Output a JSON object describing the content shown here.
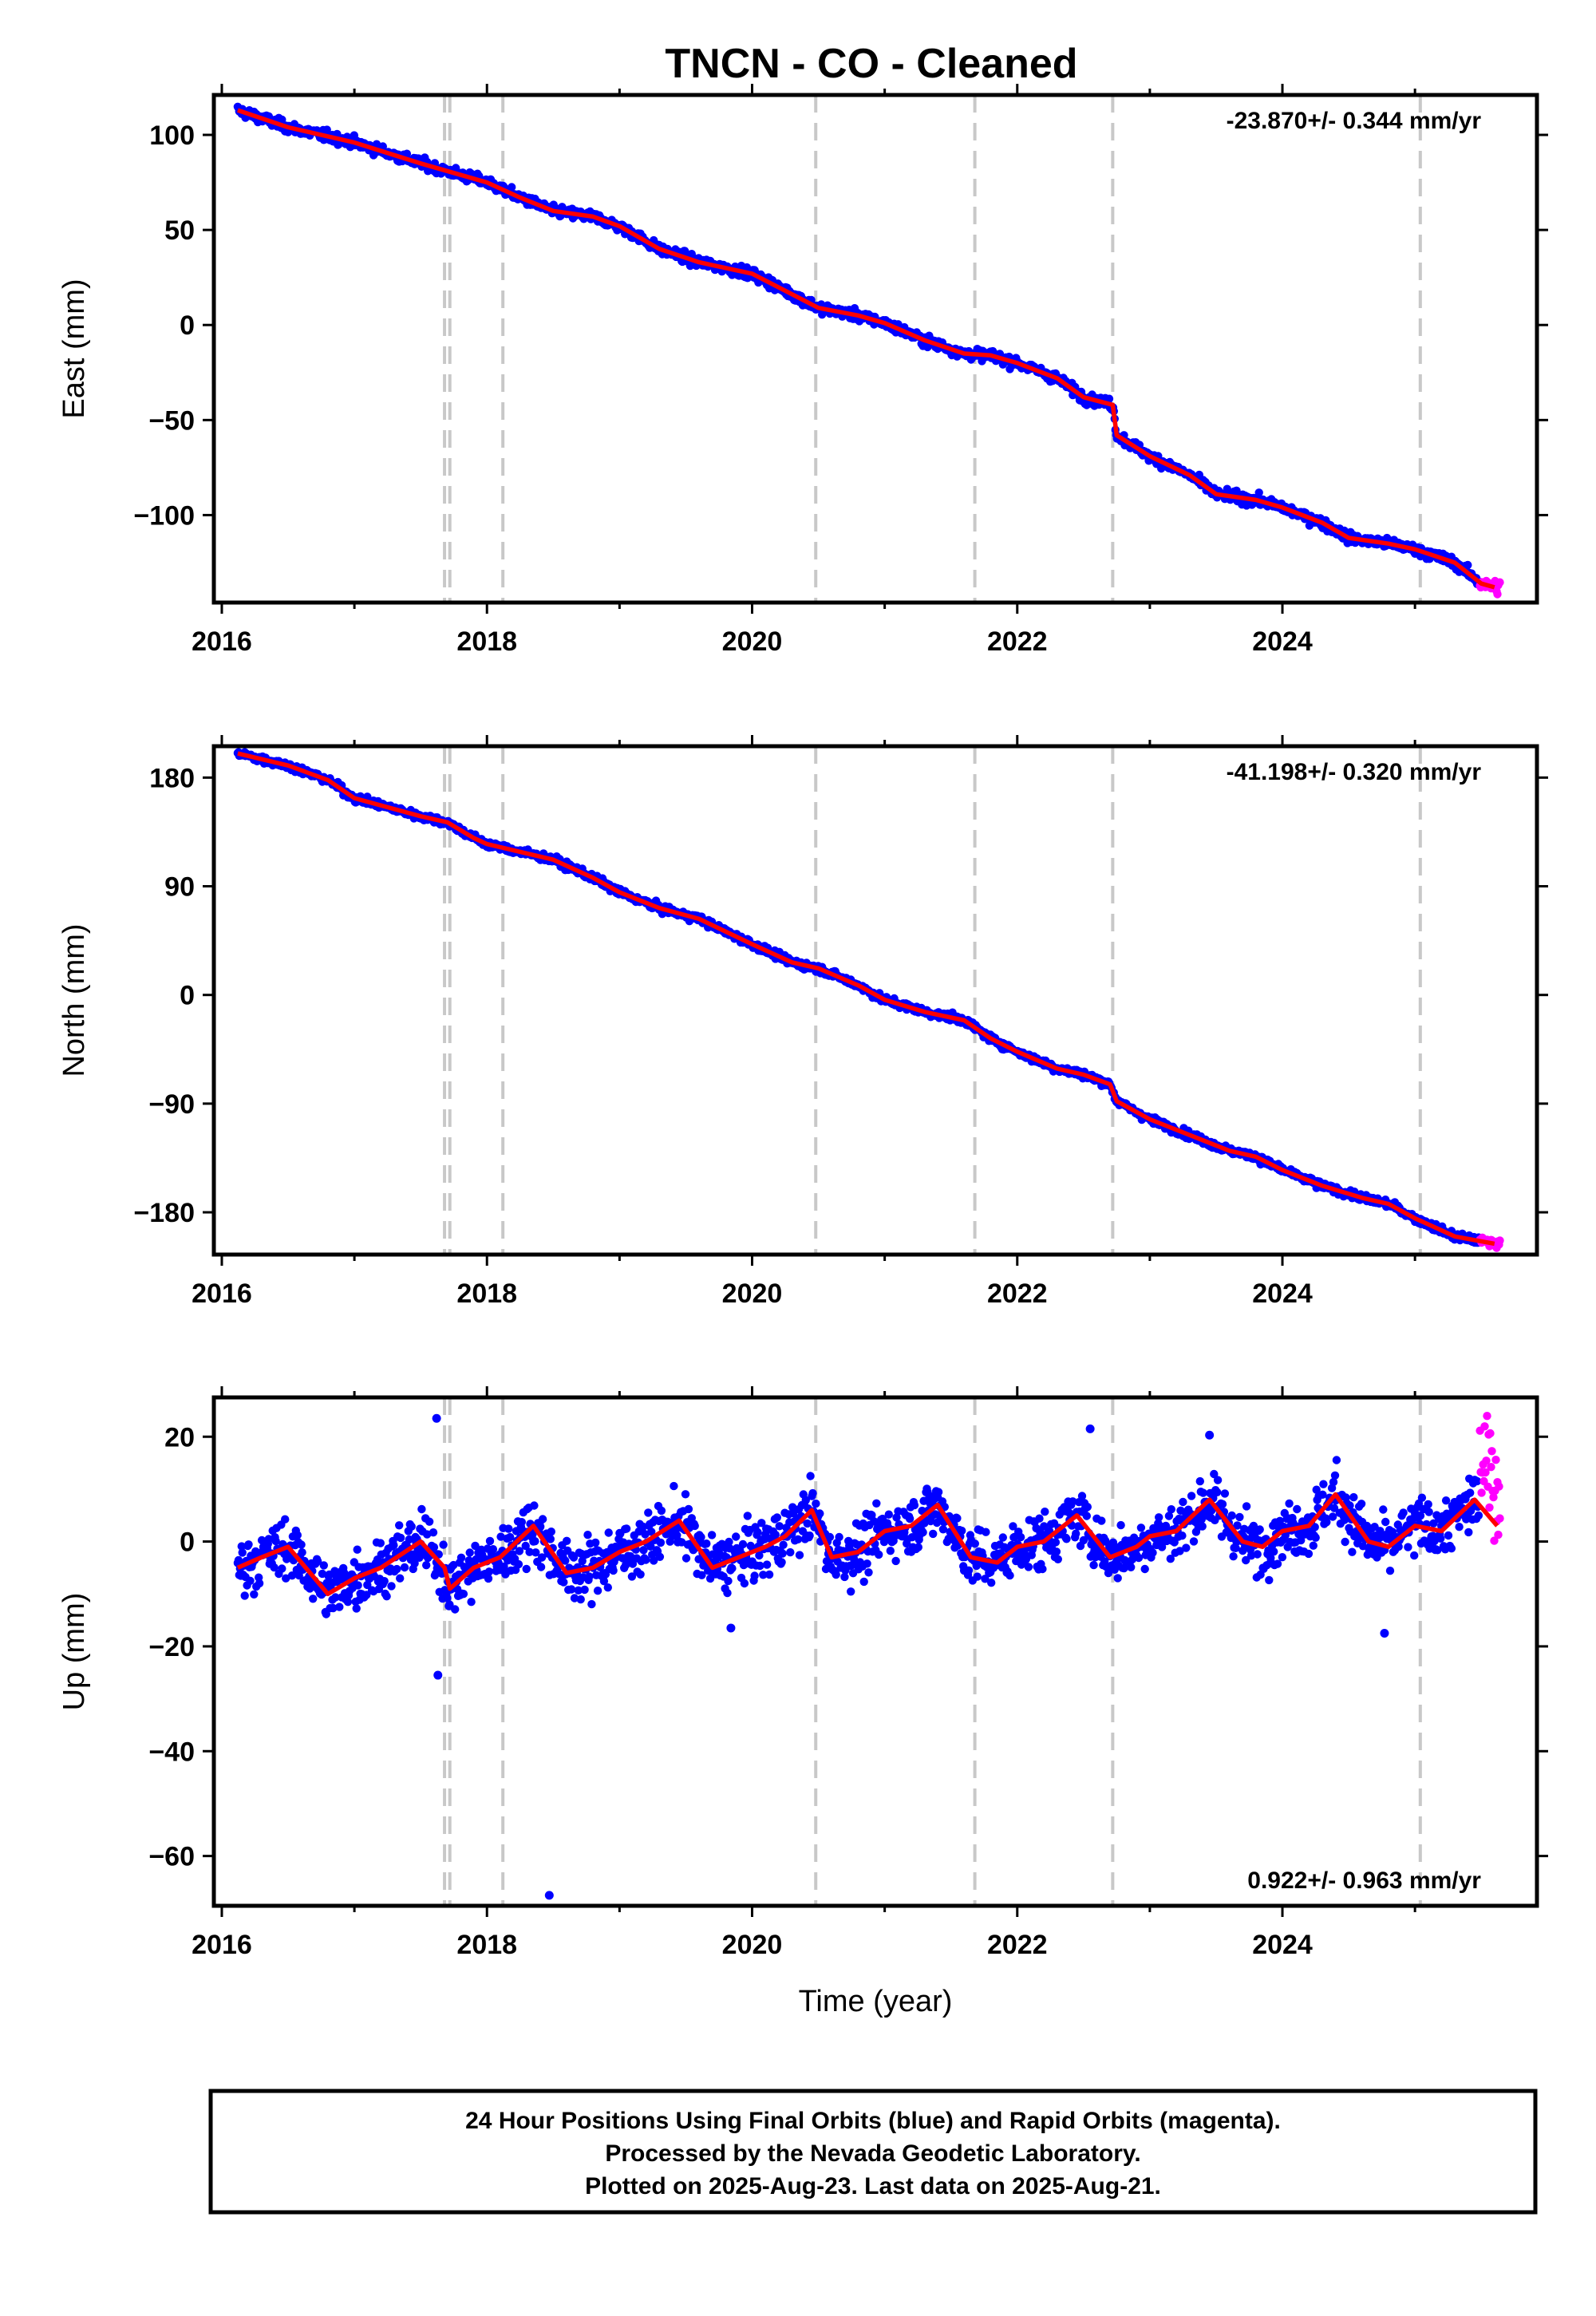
{
  "title": "TNCN  - CO - Cleaned",
  "colors": {
    "final": "#0000ff",
    "rapid": "#ff00ff",
    "model": "#ff0000",
    "event_lines": "#c8c8c8",
    "frame": "#000000"
  },
  "footer_lines": [
    "24 Hour Positions Using Final Orbits (blue) and Rapid Orbits (magenta).",
    "Processed by the Nevada Geodetic Laboratory.",
    "Plotted on 2025-Aug-23. Last data on 2025-Aug-21."
  ],
  "chart_data": [
    {
      "type": "scatter",
      "component": "East",
      "ylabel": "East (mm)",
      "xlabel": "",
      "xlim": [
        2015.94,
        2025.92
      ],
      "ylim": [
        -146,
        121
      ],
      "yticks": [
        100,
        50,
        0,
        -50,
        -100
      ],
      "xticks": [
        2016,
        2018,
        2020,
        2022,
        2024
      ],
      "rate_label": "-23.870+/- 0.344 mm/yr",
      "rate_position": "top-right",
      "event_lines": [
        2017.68,
        2017.72,
        2018.12,
        2020.48,
        2021.68,
        2022.72,
        2025.04
      ],
      "model_fit": {
        "x": [
          2016.12,
          2016.5,
          2017.0,
          2017.5,
          2017.75,
          2018.0,
          2018.25,
          2018.5,
          2018.8,
          2019.0,
          2019.3,
          2019.6,
          2020.0,
          2020.25,
          2020.5,
          2020.8,
          2021.0,
          2021.3,
          2021.6,
          2021.8,
          2022.0,
          2022.3,
          2022.5,
          2022.72,
          2022.75,
          2023.0,
          2023.3,
          2023.5,
          2023.8,
          2024.0,
          2024.3,
          2024.5,
          2024.8,
          2025.0,
          2025.3,
          2025.5,
          2025.6
        ],
        "y": [
          113,
          104,
          96,
          85,
          80,
          75,
          67,
          60,
          57,
          52,
          40,
          33,
          27,
          18,
          9,
          5,
          1,
          -8,
          -15,
          -16,
          -20,
          -28,
          -38,
          -42,
          -58,
          -69,
          -79,
          -89,
          -92,
          -96,
          -104,
          -112,
          -115,
          -118,
          -125,
          -136,
          -138
        ]
      },
      "final_orbits": {
        "start": 2016.12,
        "end": 2025.48,
        "scatter_mm": 2.1
      },
      "rapid_orbits": {
        "start": 2025.49,
        "end": 2025.64,
        "scatter_mm": 3.0
      }
    },
    {
      "type": "scatter",
      "component": "North",
      "ylabel": "North (mm)",
      "xlabel": "",
      "xlim": [
        2015.94,
        2025.92
      ],
      "ylim": [
        -215,
        206
      ],
      "yticks": [
        180,
        90,
        0,
        -90,
        -180
      ],
      "xticks": [
        2016,
        2018,
        2020,
        2022,
        2024
      ],
      "rate_label": "-41.198+/- 0.320 mm/yr",
      "rate_position": "top-right",
      "event_lines": [
        2017.68,
        2017.72,
        2018.12,
        2020.48,
        2021.68,
        2022.72,
        2025.04
      ],
      "model_fit": {
        "x": [
          2016.12,
          2016.5,
          2016.8,
          2017.0,
          2017.5,
          2017.7,
          2017.9,
          2018.0,
          2018.5,
          2018.8,
          2019.0,
          2019.3,
          2019.6,
          2020.0,
          2020.3,
          2020.5,
          2020.8,
          2021.0,
          2021.3,
          2021.6,
          2021.8,
          2022.0,
          2022.3,
          2022.5,
          2022.7,
          2022.75,
          2023.0,
          2023.3,
          2023.6,
          2023.8,
          2024.0,
          2024.3,
          2024.6,
          2024.8,
          2025.0,
          2025.3,
          2025.6
        ],
        "y": [
          200,
          190,
          178,
          163,
          148,
          143,
          130,
          125,
          112,
          97,
          85,
          72,
          63,
          42,
          27,
          22,
          8,
          -4,
          -14,
          -21,
          -36,
          -47,
          -61,
          -66,
          -74,
          -88,
          -103,
          -116,
          -129,
          -134,
          -145,
          -158,
          -168,
          -173,
          -185,
          -200,
          -206
        ]
      },
      "final_orbits": {
        "start": 2016.12,
        "end": 2025.48,
        "scatter_mm": 2.4
      },
      "rapid_orbits": {
        "start": 2025.49,
        "end": 2025.64,
        "scatter_mm": 3.0
      }
    },
    {
      "type": "scatter",
      "component": "Up",
      "ylabel": "Up (mm)",
      "xlabel": "Time (year)",
      "xlim": [
        2015.94,
        2025.92
      ],
      "ylim": [
        -69.5,
        27.5
      ],
      "yticks": [
        20,
        0,
        -20,
        -40,
        -60
      ],
      "xticks": [
        2016,
        2018,
        2020,
        2022,
        2024
      ],
      "rate_label": "0.922+/- 0.963 mm/yr",
      "rate_position": "bottom-right",
      "event_lines": [
        2017.68,
        2017.72,
        2018.12,
        2020.48,
        2021.68,
        2022.72,
        2025.04
      ],
      "model_fit": {
        "x": [
          2016.12,
          2016.3,
          2016.5,
          2016.8,
          2017.0,
          2017.2,
          2017.5,
          2017.68,
          2017.72,
          2017.9,
          2018.1,
          2018.35,
          2018.6,
          2018.8,
          2019.0,
          2019.2,
          2019.45,
          2019.7,
          2019.9,
          2020.1,
          2020.25,
          2020.45,
          2020.6,
          2020.8,
          2021.0,
          2021.2,
          2021.4,
          2021.65,
          2021.85,
          2022.0,
          2022.2,
          2022.45,
          2022.7,
          2022.9,
          2023.0,
          2023.2,
          2023.45,
          2023.7,
          2023.85,
          2024.0,
          2024.2,
          2024.4,
          2024.65,
          2024.8,
          2025.0,
          2025.2,
          2025.45,
          2025.62
        ],
        "y": [
          -5,
          -3,
          -1,
          -10,
          -7,
          -5,
          0,
          -5,
          -9,
          -5,
          -3,
          3,
          -6,
          -5,
          -2,
          0,
          4,
          -5,
          -3,
          -1,
          1,
          6,
          -3,
          -2,
          2,
          3,
          7,
          -3,
          -4,
          -1,
          0,
          5,
          -3,
          -1,
          1,
          2,
          8,
          0,
          -1,
          2,
          3,
          9,
          0,
          -1,
          3,
          2,
          8,
          3
        ],
        "jumps": []
      },
      "final_orbits": {
        "start": 2016.12,
        "end": 2025.48,
        "scatter_mm": 4.2
      },
      "rapid_orbits": {
        "start": 2025.49,
        "end": 2025.64,
        "scatter_mm": 8.0,
        "offset_mm": 8
      },
      "outliers": [
        {
          "x": 2017.62,
          "y": 23.5
        },
        {
          "x": 2017.63,
          "y": -25.5
        },
        {
          "x": 2018.47,
          "y": -67.5
        },
        {
          "x": 2019.84,
          "y": -16.5
        },
        {
          "x": 2024.77,
          "y": -17.5
        },
        {
          "x": 2022.55,
          "y": 21.5
        },
        {
          "x": 2023.45,
          "y": 20.3
        }
      ]
    }
  ]
}
